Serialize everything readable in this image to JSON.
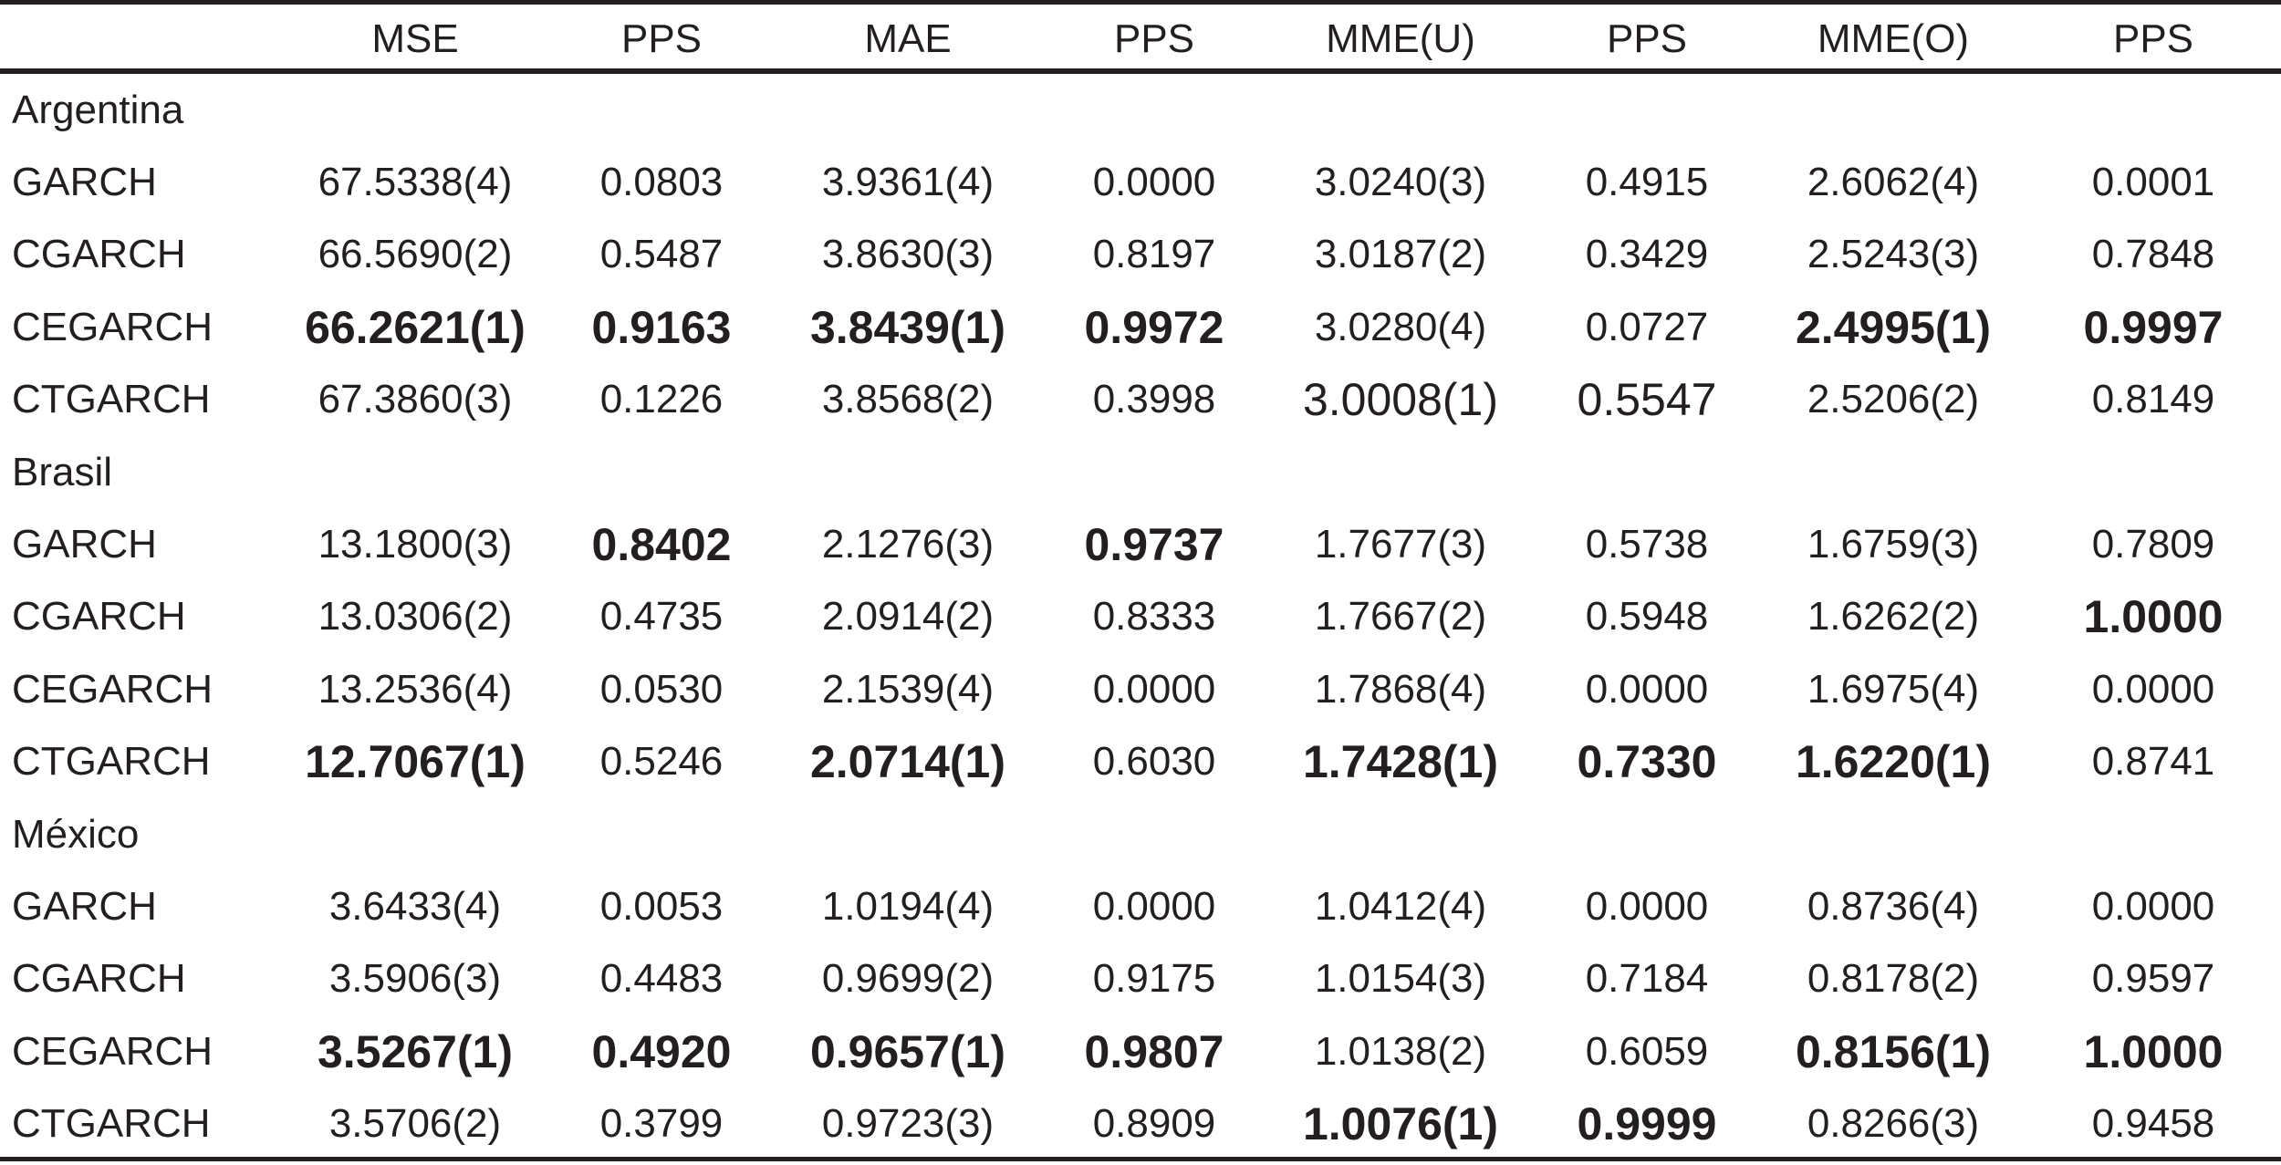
{
  "header": {
    "columns": [
      "",
      "MSE",
      "PPS",
      "MAE",
      "PPS",
      "MME(U)",
      "PPS",
      "MME(O)",
      "PPS"
    ]
  },
  "groups": [
    {
      "name": "Argentina",
      "rows": [
        {
          "model": "GARCH",
          "cells": [
            {
              "text": "67.5338(4)",
              "bold": false
            },
            {
              "text": "0.0803",
              "bold": false
            },
            {
              "text": "3.9361(4)",
              "bold": false
            },
            {
              "text": "0.0000",
              "bold": false
            },
            {
              "text": "3.0240(3)",
              "bold": false
            },
            {
              "text": "0.4915",
              "bold": false
            },
            {
              "text": "2.6062(4)",
              "bold": false
            },
            {
              "text": "0.0001",
              "bold": false
            }
          ]
        },
        {
          "model": "CGARCH",
          "cells": [
            {
              "text": "66.5690(2)",
              "bold": false
            },
            {
              "text": "0.5487",
              "bold": false
            },
            {
              "text": "3.8630(3)",
              "bold": false
            },
            {
              "text": "0.8197",
              "bold": false
            },
            {
              "text": "3.0187(2)",
              "bold": false
            },
            {
              "text": "0.3429",
              "bold": false
            },
            {
              "text": "2.5243(3)",
              "bold": false
            },
            {
              "text": "0.7848",
              "bold": false
            }
          ]
        },
        {
          "model": "CEGARCH",
          "cells": [
            {
              "text": "66.2621(1)",
              "bold": true
            },
            {
              "text": "0.9163",
              "bold": true
            },
            {
              "text": "3.8439(1)",
              "bold": true
            },
            {
              "text": "0.9972",
              "bold": true
            },
            {
              "text": "3.0280(4)",
              "bold": false
            },
            {
              "text": "0.0727",
              "bold": false
            },
            {
              "text": "2.4995(1)",
              "bold": true
            },
            {
              "text": "0.9997",
              "bold": true
            }
          ]
        },
        {
          "model": "CTGARCH",
          "cells": [
            {
              "text": "67.3860(3)",
              "bold": false
            },
            {
              "text": "0.1226",
              "bold": false
            },
            {
              "text": "3.8568(2)",
              "bold": false
            },
            {
              "text": "0.3998",
              "bold": false
            },
            {
              "text": "3.0008(1)",
              "bold": false,
              "big": true
            },
            {
              "text": "0.5547",
              "bold": false,
              "big": true
            },
            {
              "text": "2.5206(2)",
              "bold": false
            },
            {
              "text": "0.8149",
              "bold": false
            }
          ]
        }
      ]
    },
    {
      "name": "Brasil",
      "rows": [
        {
          "model": "GARCH",
          "cells": [
            {
              "text": "13.1800(3)",
              "bold": false
            },
            {
              "text": "0.8402",
              "bold": true
            },
            {
              "text": "2.1276(3)",
              "bold": false
            },
            {
              "text": "0.9737",
              "bold": true
            },
            {
              "text": "1.7677(3)",
              "bold": false
            },
            {
              "text": "0.5738",
              "bold": false
            },
            {
              "text": "1.6759(3)",
              "bold": false
            },
            {
              "text": "0.7809",
              "bold": false
            }
          ]
        },
        {
          "model": "CGARCH",
          "cells": [
            {
              "text": "13.0306(2)",
              "bold": false
            },
            {
              "text": "0.4735",
              "bold": false
            },
            {
              "text": "2.0914(2)",
              "bold": false
            },
            {
              "text": "0.8333",
              "bold": false
            },
            {
              "text": "1.7667(2)",
              "bold": false
            },
            {
              "text": "0.5948",
              "bold": false
            },
            {
              "text": "1.6262(2)",
              "bold": false
            },
            {
              "text": "1.0000",
              "bold": true
            }
          ]
        },
        {
          "model": "CEGARCH",
          "cells": [
            {
              "text": "13.2536(4)",
              "bold": false
            },
            {
              "text": "0.0530",
              "bold": false
            },
            {
              "text": "2.1539(4)",
              "bold": false
            },
            {
              "text": "0.0000",
              "bold": false
            },
            {
              "text": "1.7868(4)",
              "bold": false
            },
            {
              "text": "0.0000",
              "bold": false
            },
            {
              "text": "1.6975(4)",
              "bold": false
            },
            {
              "text": "0.0000",
              "bold": false
            }
          ]
        },
        {
          "model": "CTGARCH",
          "cells": [
            {
              "text": "12.7067(1)",
              "bold": true
            },
            {
              "text": "0.5246",
              "bold": false
            },
            {
              "text": "2.0714(1)",
              "bold": true
            },
            {
              "text": "0.6030",
              "bold": false
            },
            {
              "text": "1.7428(1)",
              "bold": true
            },
            {
              "text": "0.7330",
              "bold": true
            },
            {
              "text": "1.6220(1)",
              "bold": true
            },
            {
              "text": "0.8741",
              "bold": false
            }
          ]
        }
      ]
    },
    {
      "name": "México",
      "rows": [
        {
          "model": "GARCH",
          "cells": [
            {
              "text": "3.6433(4)",
              "bold": false
            },
            {
              "text": "0.0053",
              "bold": false
            },
            {
              "text": "1.0194(4)",
              "bold": false
            },
            {
              "text": "0.0000",
              "bold": false
            },
            {
              "text": "1.0412(4)",
              "bold": false
            },
            {
              "text": "0.0000",
              "bold": false
            },
            {
              "text": "0.8736(4)",
              "bold": false
            },
            {
              "text": "0.0000",
              "bold": false
            }
          ]
        },
        {
          "model": "CGARCH",
          "cells": [
            {
              "text": "3.5906(3)",
              "bold": false
            },
            {
              "text": "0.4483",
              "bold": false
            },
            {
              "text": "0.9699(2)",
              "bold": false
            },
            {
              "text": "0.9175",
              "bold": false
            },
            {
              "text": "1.0154(3)",
              "bold": false
            },
            {
              "text": "0.7184",
              "bold": false
            },
            {
              "text": "0.8178(2)",
              "bold": false
            },
            {
              "text": "0.9597",
              "bold": false
            }
          ]
        },
        {
          "model": "CEGARCH",
          "cells": [
            {
              "text": "3.5267(1)",
              "bold": true
            },
            {
              "text": "0.4920",
              "bold": true
            },
            {
              "text": "0.9657(1)",
              "bold": true
            },
            {
              "text": "0.9807",
              "bold": true
            },
            {
              "text": "1.0138(2)",
              "bold": false
            },
            {
              "text": "0.6059",
              "bold": false
            },
            {
              "text": "0.8156(1)",
              "bold": true
            },
            {
              "text": "1.0000",
              "bold": true
            }
          ]
        },
        {
          "model": "CTGARCH",
          "cells": [
            {
              "text": "3.5706(2)",
              "bold": false
            },
            {
              "text": "0.3799",
              "bold": false
            },
            {
              "text": "0.9723(3)",
              "bold": false
            },
            {
              "text": "0.8909",
              "bold": false
            },
            {
              "text": "1.0076(1)",
              "bold": true
            },
            {
              "text": "0.9999",
              "bold": true
            },
            {
              "text": "0.8266(3)",
              "bold": false
            },
            {
              "text": "0.9458",
              "bold": false
            }
          ]
        }
      ]
    }
  ]
}
